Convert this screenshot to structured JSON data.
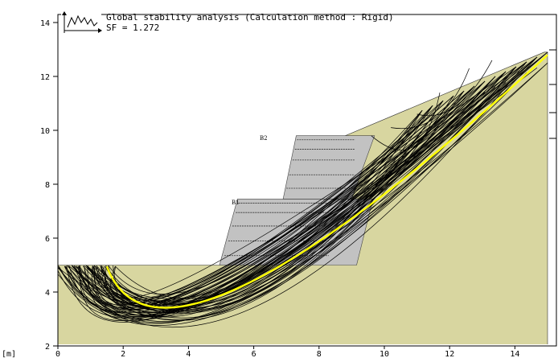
{
  "header": {
    "title": "Global stability analysis (Calculation method : Rigid)",
    "sf_text": "SF = 1.272",
    "icon": "analysis-graph-icon"
  },
  "axes": {
    "x_ticks": [
      "0",
      "2",
      "4",
      "6",
      "8",
      "10",
      "12",
      "14"
    ],
    "y_ticks": [
      "2",
      "4",
      "6",
      "8",
      "10",
      "12",
      "14"
    ],
    "unit_label": "[m]",
    "x_range": [
      0,
      15
    ],
    "y_range": [
      2,
      14.5
    ]
  },
  "blocks": [
    {
      "label": "B1"
    },
    {
      "label": "B2"
    }
  ],
  "colors": {
    "soil": "#d8d6a0",
    "block": "#c2c2c2",
    "critical_surface": "#ffff00",
    "slip_surfaces": "#000000"
  },
  "diagram": {
    "ground_profile": [
      [
        0,
        5.0
      ],
      [
        5.2,
        5.0
      ],
      [
        6.8,
        5.9
      ],
      [
        8.8,
        9.8
      ],
      [
        14.9,
        12.9
      ],
      [
        15.0,
        12.9
      ],
      [
        15.0,
        1.6
      ],
      [
        0,
        1.6
      ]
    ],
    "wall_block_B1": [
      [
        4.95,
        5.0
      ],
      [
        9.15,
        5.0
      ],
      [
        9.65,
        7.45
      ],
      [
        5.5,
        7.45
      ]
    ],
    "wall_block_B2": [
      [
        6.9,
        7.45
      ],
      [
        9.0,
        7.45
      ],
      [
        9.7,
        9.8
      ],
      [
        7.3,
        9.8
      ]
    ],
    "reinforcement_levels_B1": [
      5.35,
      5.9,
      6.45,
      6.95,
      7.3
    ],
    "reinforcement_levels_B2": [
      7.85,
      8.35,
      8.9,
      9.3,
      9.65
    ],
    "critical_surface": {
      "start": [
        1.5,
        4.95
      ],
      "mid": [
        5.7,
        4.25
      ],
      "end": [
        15.0,
        12.8
      ]
    },
    "slip_surfaces_count": 70
  }
}
